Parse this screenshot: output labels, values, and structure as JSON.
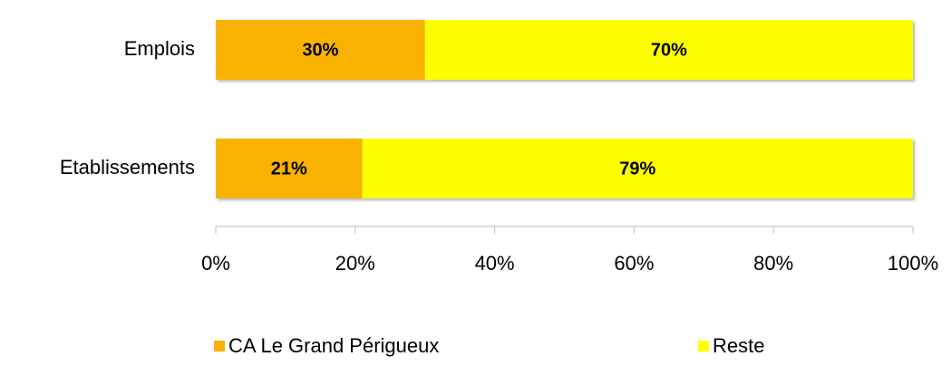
{
  "chart_data": {
    "type": "stacked_barh",
    "categories": [
      "Emplois",
      "Etablissements"
    ],
    "series": [
      {
        "name": "CA Le Grand Périgueux",
        "color": "#f9b200",
        "values": [
          30,
          21
        ],
        "value_labels": [
          "30%",
          "21%"
        ]
      },
      {
        "name": "Reste",
        "color": "#ffff00",
        "values": [
          70,
          79
        ],
        "value_labels": [
          "70%",
          "79%"
        ]
      }
    ],
    "xlim": [
      0,
      100
    ],
    "xticks": [
      {
        "value": 0,
        "label": "0%"
      },
      {
        "value": 20,
        "label": "20%"
      },
      {
        "value": 40,
        "label": "40%"
      },
      {
        "value": 60,
        "label": "60%"
      },
      {
        "value": 80,
        "label": "80%"
      },
      {
        "value": 100,
        "label": "100%"
      }
    ],
    "legend": "bottom"
  }
}
